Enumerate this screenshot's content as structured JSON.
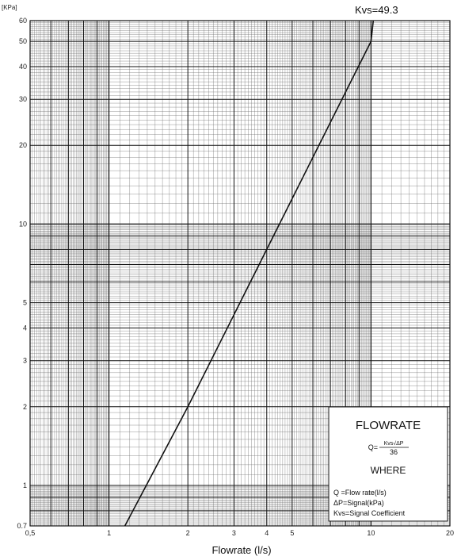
{
  "chart_data": {
    "type": "line",
    "title": "",
    "xlabel": "Flowrate (l/s)",
    "ylabel": "",
    "y_unit_label": "[KPa]",
    "x_scale": "log",
    "y_scale": "log",
    "xlim": [
      0.5,
      20
    ],
    "ylim": [
      0.7,
      60
    ],
    "grid": true,
    "x_ticks": [
      "0,5",
      "1",
      "2",
      "3",
      "4",
      "5",
      "10",
      "20"
    ],
    "x_tick_values": [
      0.5,
      1,
      2,
      3,
      4,
      5,
      10,
      20
    ],
    "y_ticks": [
      "0.7",
      "1",
      "2",
      "3",
      "4",
      "5",
      "10",
      "20",
      "30",
      "40",
      "50",
      "60"
    ],
    "y_tick_values": [
      0.7,
      1,
      2,
      3,
      4,
      5,
      10,
      20,
      30,
      40,
      50,
      60
    ],
    "annotation": "Kvs=49.3",
    "series": [
      {
        "x": [
          1.15,
          2.0,
          3.0,
          4.0,
          5.0,
          10.0,
          10.2
        ],
        "y": [
          0.7,
          2.0,
          4.5,
          8.0,
          12.5,
          50.0,
          60.0
        ]
      }
    ]
  },
  "legend_box": {
    "title": "FLOWRATE",
    "formula_lhs": "Q=",
    "formula_numerator": "Kvs√ΔP",
    "formula_denominator": "36",
    "where": "WHERE",
    "definitions": [
      "Q  =Flow rate(l/s)",
      "ΔP=Signal(kPa)",
      "Kvs=Signal Coefficient"
    ]
  }
}
